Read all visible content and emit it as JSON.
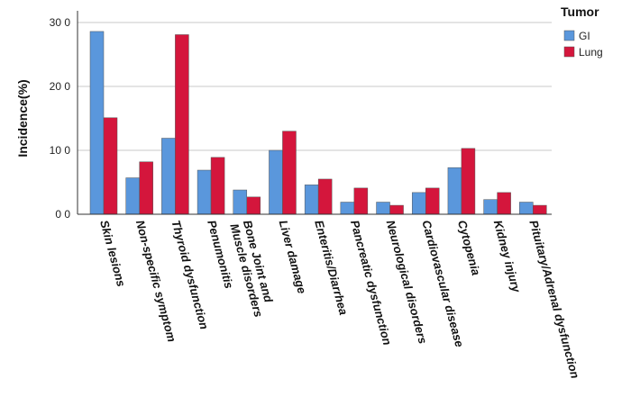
{
  "chart_data": {
    "type": "bar",
    "title": "",
    "xlabel": "",
    "ylabel": "Incidence(%)",
    "ylim": [
      0,
      30
    ],
    "yticks": [
      0,
      10,
      20,
      30
    ],
    "ytick_labels": [
      "0 0",
      "10 0",
      "20 0",
      "30 0"
    ],
    "grid": true,
    "legend": {
      "title": "Tumor",
      "placement": "top-right"
    },
    "categories": [
      "Skin lesions",
      "Non-specific symptom",
      "Thyroid dysfunction",
      "Penumonitis",
      "Bone Joint and Muscle disorders",
      "Liver damage",
      "Enteritis/Diarrhea",
      "Pancreatic dysfunction",
      "Neurological disorders",
      "Cardiovascular disease",
      "Cytopenia",
      "Kidney injury",
      "Pituitary/Adrenal dysfunction"
    ],
    "series": [
      {
        "name": "GI",
        "color": "#5a97dc",
        "values": [
          28.6,
          5.7,
          11.9,
          6.9,
          3.8,
          10.0,
          4.6,
          1.9,
          1.9,
          3.4,
          7.3,
          2.3,
          1.9
        ]
      },
      {
        "name": "Lung",
        "color": "#d4163c",
        "values": [
          15.1,
          8.2,
          28.1,
          8.9,
          2.7,
          13.0,
          5.5,
          4.1,
          1.4,
          4.1,
          10.3,
          3.4,
          1.4
        ]
      }
    ]
  }
}
